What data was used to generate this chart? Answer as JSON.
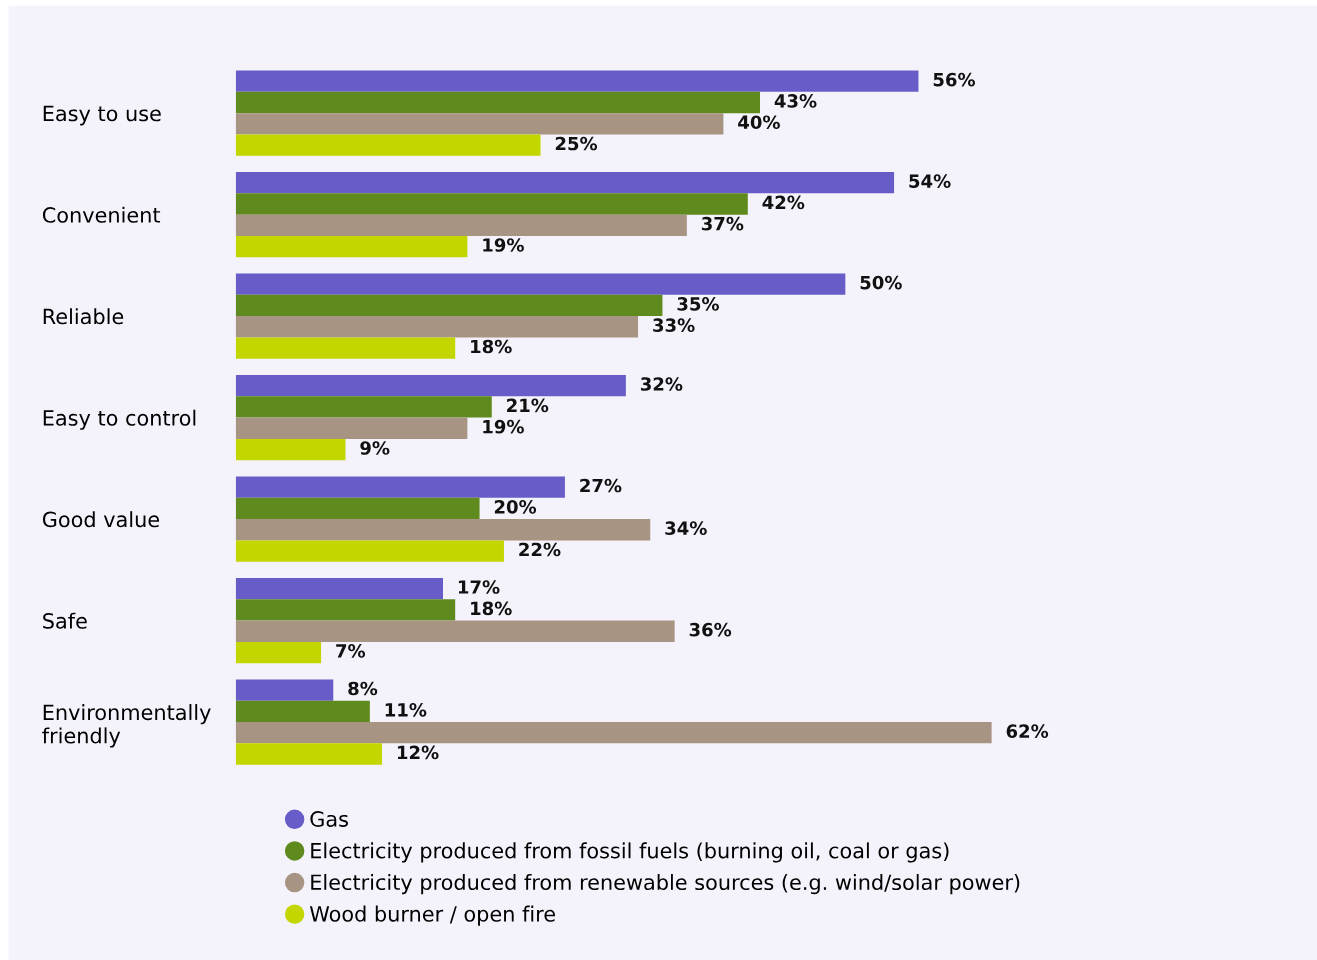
{
  "chart_data": {
    "type": "bar",
    "orientation": "horizontal",
    "categories": [
      "Easy to use",
      "Convenient",
      "Reliable",
      "Easy to control",
      "Good value",
      "Safe",
      "Environmentally\nfriendly"
    ],
    "series": [
      {
        "name": "Gas",
        "color": "#675cc8",
        "values": [
          56,
          54,
          50,
          32,
          27,
          17,
          8
        ],
        "value_labels": [
          "56%",
          "54%",
          "50%",
          "32%",
          "27%",
          "17%",
          "8%"
        ]
      },
      {
        "name": "Electricity produced from fossil fuels (burning oil, coal or gas)",
        "color": "#5f8a1e",
        "values": [
          43,
          42,
          35,
          21,
          20,
          18,
          11
        ],
        "value_labels": [
          "43%",
          "42%",
          "35%",
          "21%",
          "20%",
          "18%",
          "11%"
        ]
      },
      {
        "name": "Electricity produced from renewable sources (e.g. wind/solar power)",
        "color": "#a89482",
        "values": [
          40,
          37,
          33,
          19,
          34,
          36,
          62
        ],
        "value_labels": [
          "40%",
          "37%",
          "33%",
          "19%",
          "34%",
          "36%",
          "62%"
        ]
      },
      {
        "name": "Wood burner / open fire",
        "color": "#c4d600",
        "values": [
          25,
          19,
          18,
          9,
          22,
          7,
          12
        ],
        "value_labels": [
          "25%",
          "19%",
          "18%",
          "9%",
          "22%",
          "7%",
          "12%"
        ]
      }
    ],
    "tick_labels": "y",
    "grid": false,
    "legend": "bottom"
  }
}
